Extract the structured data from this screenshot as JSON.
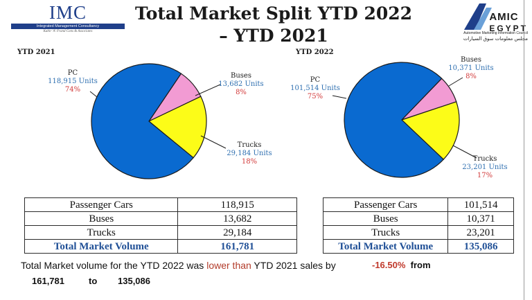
{
  "header": {
    "imc_logo": "IMC",
    "imc_name": "Integrated Management Consultancy",
    "imc_tagline": "Kabir 'A' Frand Cons & Associates",
    "title_line1": "Total Market Split YTD 2022",
    "title_line2": "– YTD 2021",
    "amic_logo_line1": "AMIC",
    "amic_logo_line2": "EGYPT",
    "amic_sub": "Automotive Marketing Information Council",
    "amic_arabic": "مجلس معلومات سوق السيارات"
  },
  "colors": {
    "pc": "#0a6ad0",
    "buses": "#f29bd3",
    "trucks": "#fcfc18",
    "units": "#2e6fb0",
    "pct": "#d23a3a",
    "total": "#1f4f96"
  },
  "chart_data": [
    {
      "type": "pie",
      "title": "YTD 2021",
      "categories": [
        "PC",
        "Buses",
        "Trucks"
      ],
      "values": [
        118915,
        13682,
        29184
      ],
      "value_labels": [
        "118,915 Units",
        "13,682 Units",
        "29,184 Units"
      ],
      "percent_labels": [
        "74%",
        "8%",
        "18%"
      ]
    },
    {
      "type": "pie",
      "title": "YTD 2022",
      "categories": [
        "PC",
        "Buses",
        "Trucks"
      ],
      "values": [
        101514,
        10371,
        23201
      ],
      "value_labels": [
        "101,514 Units",
        "10,371 Units",
        "23,201 Units"
      ],
      "percent_labels": [
        "75%",
        "8%",
        "17%"
      ]
    }
  ],
  "tables": [
    {
      "rows": [
        [
          "Passenger Cars",
          "118,915"
        ],
        [
          "Buses",
          "13,682"
        ],
        [
          "Trucks",
          "29,184"
        ]
      ],
      "total": [
        "Total Market Volume",
        "161,781"
      ]
    },
    {
      "rows": [
        [
          "Passenger Cars",
          "101,514"
        ],
        [
          "Buses",
          "10,371"
        ],
        [
          "Trucks",
          "23,201"
        ]
      ],
      "total": [
        "Total Market Volume",
        "135,086"
      ]
    }
  ],
  "summary": {
    "prefix": "Total Market volume for the YTD 2022 was ",
    "lower": "lower than",
    "suffix": " YTD 2021 sales by",
    "change": "-16.50%",
    "from": "from",
    "from_value": "161,781",
    "to": "to",
    "to_value": "135,086"
  }
}
